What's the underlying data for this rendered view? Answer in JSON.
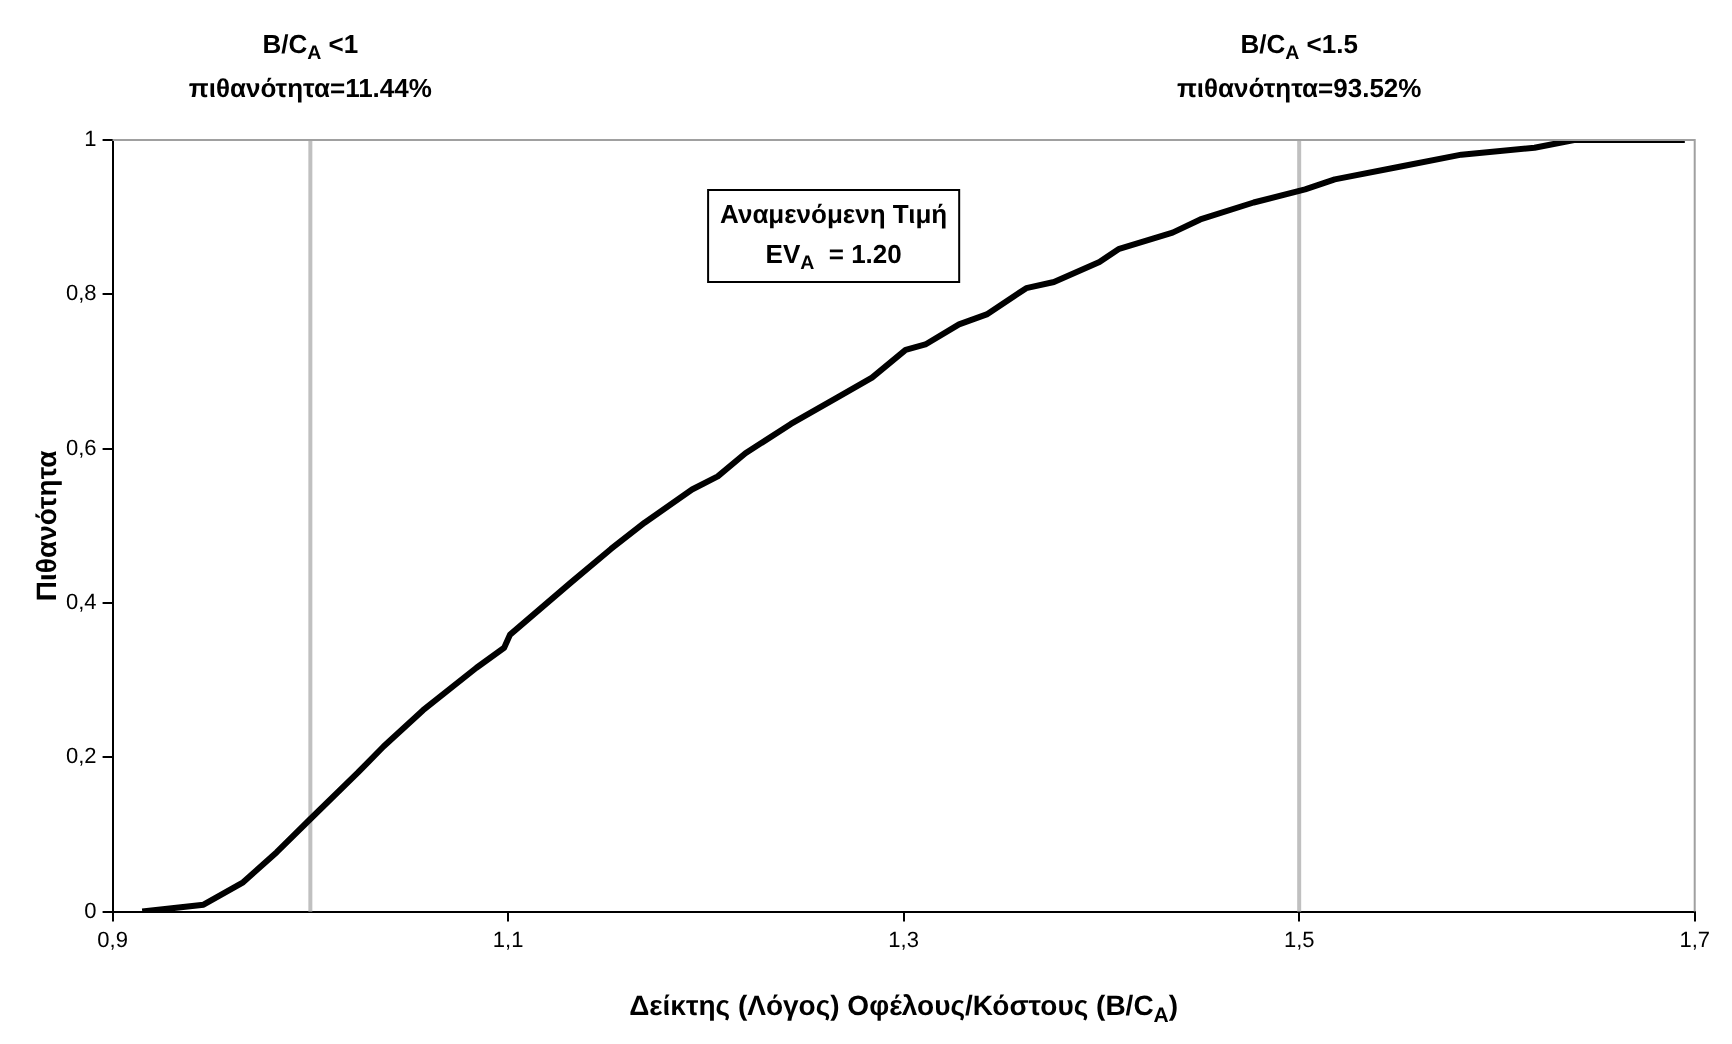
{
  "chart_data": {
    "type": "line",
    "xlabel": "Δείκτης (Λόγος) Οφέλους/Κόστους (B/C$_{A}$)",
    "ylabel": "Πιθανότητα",
    "xlim": [
      0.9,
      1.7
    ],
    "xticks": [
      {
        "value": 0.9,
        "label": "0,9"
      },
      {
        "value": 1.1,
        "label": "1,1"
      },
      {
        "value": 1.3,
        "label": "1,3"
      },
      {
        "value": 1.5,
        "label": "1,5"
      },
      {
        "value": 1.7,
        "label": "1,7"
      }
    ],
    "ylim": [
      0,
      1
    ],
    "yticks": [
      0,
      {
        "value": 0.2,
        "label": "0,2"
      },
      {
        "value": 0.4,
        "label": "0,4"
      },
      {
        "value": 0.6,
        "label": "0,6"
      },
      {
        "value": 0.8,
        "label": "0,8"
      },
      1
    ],
    "grid": false,
    "legend": false,
    "marker": "none",
    "line_style": "solid",
    "series": [
      {
        "color": "#000000",
        "x": [
          0.915,
          0.946,
          0.966,
          0.983,
          1.0,
          1.024,
          1.037,
          1.057,
          1.084,
          1.098,
          1.101,
          1.132,
          1.152,
          1.169,
          1.193,
          1.206,
          1.22,
          1.243,
          1.267,
          1.284,
          1.301,
          1.311,
          1.328,
          1.342,
          1.362,
          1.376,
          1.399,
          1.409,
          1.436,
          1.45,
          1.477,
          1.503,
          1.518,
          1.552,
          1.582,
          1.619,
          1.639,
          1.695
        ],
        "values": [
          0,
          0.009,
          0.038,
          0.077,
          0.12,
          0.18,
          0.214,
          0.261,
          0.316,
          0.342,
          0.359,
          0.427,
          0.47,
          0.504,
          0.547,
          0.564,
          0.594,
          0.632,
          0.667,
          0.692,
          0.728,
          0.735,
          0.761,
          0.774,
          0.808,
          0.816,
          0.842,
          0.859,
          0.88,
          0.897,
          0.919,
          0.936,
          0.949,
          0.966,
          0.981,
          0.99,
          1,
          1
        ]
      }
    ],
    "ref_lines": [
      {
        "axis": "x",
        "value": 1.0,
        "label": "B/C$_{A}$ <1\nπιθανότητα=11.44%",
        "color": "#c0c0c0"
      },
      {
        "axis": "x",
        "value": 1.5,
        "label": "B/C$_{A}$ <1.5\nπιθανότητα=93.52%",
        "color": "#c0c0c0"
      }
    ],
    "annotations": [
      "Αναμενόμενη Τιμή\nEV$_{A}$  = 1.20"
    ]
  }
}
